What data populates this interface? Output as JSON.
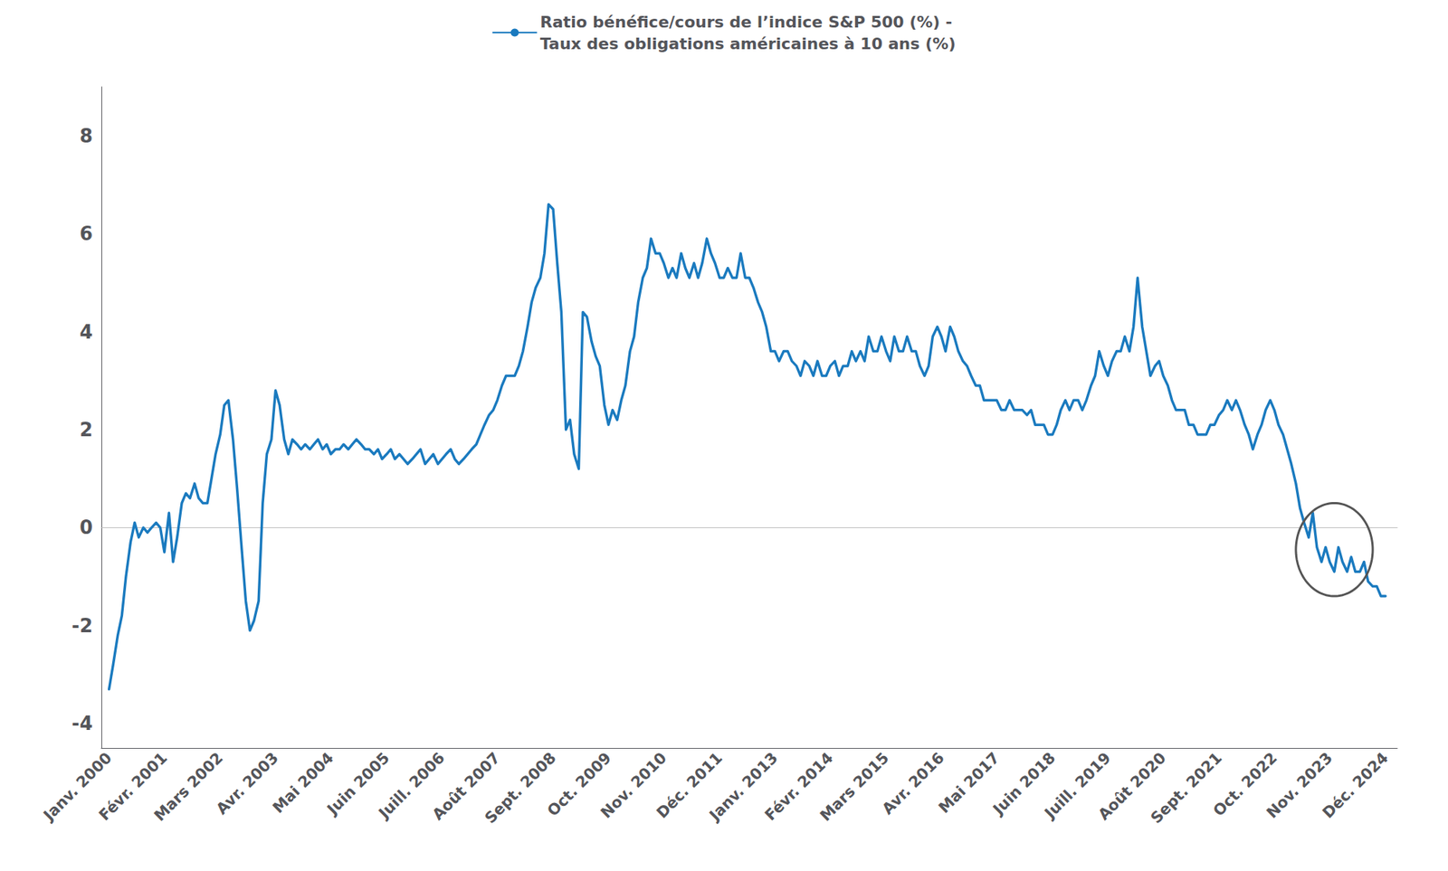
{
  "chart_data": {
    "type": "line",
    "legend": "top",
    "grid": false,
    "series": [
      {
        "name": "Ratio bénéfice/cours de l’indice S&P 500 (%) -\nTaux des obligations américaines à 10 ans (%)",
        "color": "#1a7abf",
        "values": [
          -3.3,
          -2.8,
          -2.2,
          -1.8,
          -1.0,
          -0.3,
          0.1,
          -0.2,
          0.0,
          -0.1,
          0.0,
          0.1,
          0.0,
          -0.5,
          0.3,
          -0.7,
          -0.2,
          0.5,
          0.7,
          0.6,
          0.9,
          0.6,
          0.5,
          0.5,
          1.0,
          1.5,
          1.9,
          2.5,
          2.6,
          1.8,
          0.8,
          -0.3,
          -1.5,
          -2.1,
          -1.9,
          -1.5,
          0.5,
          1.5,
          1.8,
          2.8,
          2.5,
          1.8,
          1.5,
          1.8,
          1.7,
          1.6,
          1.7,
          1.6,
          1.7,
          1.8,
          1.6,
          1.7,
          1.5,
          1.6,
          1.6,
          1.7,
          1.6,
          1.7,
          1.8,
          1.7,
          1.6,
          1.6,
          1.5,
          1.6,
          1.4,
          1.5,
          1.6,
          1.4,
          1.5,
          1.4,
          1.3,
          1.4,
          1.5,
          1.6,
          1.3,
          1.4,
          1.5,
          1.3,
          1.4,
          1.5,
          1.6,
          1.4,
          1.3,
          1.4,
          1.5,
          1.6,
          1.7,
          1.9,
          2.1,
          2.3,
          2.4,
          2.6,
          2.9,
          3.1,
          3.1,
          3.1,
          3.3,
          3.6,
          4.1,
          4.6,
          4.9,
          5.1,
          5.6,
          6.6,
          6.5,
          5.4,
          4.4,
          2.0,
          2.2,
          1.5,
          1.2,
          4.4,
          4.3,
          3.8,
          3.5,
          3.3,
          2.5,
          2.1,
          2.4,
          2.2,
          2.6,
          2.9,
          3.6,
          3.9,
          4.6,
          5.1,
          5.3,
          5.9,
          5.6,
          5.6,
          5.4,
          5.1,
          5.3,
          5.1,
          5.6,
          5.3,
          5.1,
          5.4,
          5.1,
          5.4,
          5.9,
          5.6,
          5.4,
          5.1,
          5.1,
          5.3,
          5.1,
          5.1,
          5.6,
          5.1,
          5.1,
          4.9,
          4.6,
          4.4,
          4.1,
          3.6,
          3.6,
          3.4,
          3.6,
          3.6,
          3.4,
          3.3,
          3.1,
          3.4,
          3.3,
          3.1,
          3.4,
          3.1,
          3.1,
          3.3,
          3.4,
          3.1,
          3.3,
          3.3,
          3.6,
          3.4,
          3.6,
          3.4,
          3.9,
          3.6,
          3.6,
          3.9,
          3.6,
          3.4,
          3.9,
          3.6,
          3.6,
          3.9,
          3.6,
          3.6,
          3.3,
          3.1,
          3.3,
          3.9,
          4.1,
          3.9,
          3.6,
          4.1,
          3.9,
          3.6,
          3.4,
          3.3,
          3.1,
          2.9,
          2.9,
          2.6,
          2.6,
          2.6,
          2.6,
          2.4,
          2.4,
          2.6,
          2.4,
          2.4,
          2.4,
          2.3,
          2.4,
          2.1,
          2.1,
          2.1,
          1.9,
          1.9,
          2.1,
          2.4,
          2.6,
          2.4,
          2.6,
          2.6,
          2.4,
          2.6,
          2.9,
          3.1,
          3.6,
          3.3,
          3.1,
          3.4,
          3.6,
          3.6,
          3.9,
          3.6,
          4.1,
          5.1,
          4.1,
          3.6,
          3.1,
          3.3,
          3.4,
          3.1,
          2.9,
          2.6,
          2.4,
          2.4,
          2.4,
          2.1,
          2.1,
          1.9,
          1.9,
          1.9,
          2.1,
          2.1,
          2.3,
          2.4,
          2.6,
          2.4,
          2.6,
          2.4,
          2.1,
          1.9,
          1.6,
          1.9,
          2.1,
          2.4,
          2.6,
          2.4,
          2.1,
          1.9,
          1.6,
          1.3,
          0.9,
          0.4,
          0.1,
          -0.2,
          0.3,
          -0.4,
          -0.7,
          -0.4,
          -0.7,
          -0.9,
          -0.4,
          -0.7,
          -0.9,
          -0.6,
          -0.9,
          -0.9,
          -0.7,
          -1.1,
          -1.2,
          -1.2,
          -1.4,
          -1.4
        ]
      }
    ],
    "x": [
      2000.0,
      2000.08,
      2000.17,
      2000.25,
      2000.33,
      2000.42,
      2000.5,
      2000.58,
      2000.67,
      2000.75,
      2000.83,
      2000.92,
      2001.0,
      2001.08,
      2001.17,
      2001.25,
      2001.33,
      2001.42,
      2001.5,
      2001.58,
      2001.67,
      2001.75,
      2001.83,
      2001.92,
      2002.0,
      2002.08,
      2002.17,
      2002.25,
      2002.33,
      2002.42,
      2002.5,
      2002.58,
      2002.67,
      2002.75,
      2002.83,
      2002.92,
      2003.0,
      2003.08,
      2003.17,
      2003.25,
      2003.33,
      2003.42,
      2003.5,
      2003.58,
      2003.67,
      2003.75,
      2003.83,
      2003.92,
      2004.0,
      2004.08,
      2004.17,
      2004.25,
      2004.33,
      2004.42,
      2004.5,
      2004.58,
      2004.67,
      2004.75,
      2004.83,
      2004.92,
      2005.0,
      2005.08,
      2005.17,
      2005.25,
      2005.33,
      2005.42,
      2005.5,
      2005.58,
      2005.67,
      2005.75,
      2005.83,
      2005.92,
      2006.0,
      2006.08,
      2006.17,
      2006.25,
      2006.33,
      2006.42,
      2006.5,
      2006.58,
      2006.67,
      2006.75,
      2006.83,
      2006.92,
      2007.0,
      2007.08,
      2007.17,
      2007.25,
      2007.33,
      2007.42,
      2007.5,
      2007.58,
      2007.67,
      2007.75,
      2007.83,
      2007.92,
      2008.0,
      2008.08,
      2008.17,
      2008.25,
      2008.33,
      2008.42,
      2008.5,
      2008.58,
      2008.67,
      2008.75,
      2008.83,
      2008.92,
      2009.0,
      2009.08,
      2009.17,
      2009.25,
      2009.33,
      2009.42,
      2009.5,
      2009.58,
      2009.67,
      2009.75,
      2009.83,
      2009.92,
      2010.0,
      2010.08,
      2010.17,
      2010.25,
      2010.33,
      2010.42,
      2010.5,
      2010.58,
      2010.67,
      2010.75,
      2010.83,
      2010.92,
      2011.0,
      2011.08,
      2011.17,
      2011.25,
      2011.33,
      2011.42,
      2011.5,
      2011.58,
      2011.67,
      2011.75,
      2011.83,
      2011.92,
      2012.0,
      2012.08,
      2012.17,
      2012.25,
      2012.33,
      2012.42,
      2012.5,
      2012.58,
      2012.67,
      2012.75,
      2012.83,
      2012.92,
      2013.0,
      2013.08,
      2013.17,
      2013.25,
      2013.33,
      2013.42,
      2013.5,
      2013.58,
      2013.67,
      2013.75,
      2013.83,
      2013.92,
      2014.0,
      2014.08,
      2014.17,
      2014.25,
      2014.33,
      2014.42,
      2014.5,
      2014.58,
      2014.67,
      2014.75,
      2014.83,
      2014.92,
      2015.0,
      2015.08,
      2015.17,
      2015.25,
      2015.33,
      2015.42,
      2015.5,
      2015.58,
      2015.67,
      2015.75,
      2015.83,
      2015.92,
      2016.0,
      2016.08,
      2016.17,
      2016.25,
      2016.33,
      2016.42,
      2016.5,
      2016.58,
      2016.67,
      2016.75,
      2016.83,
      2016.92,
      2017.0,
      2017.08,
      2017.17,
      2017.25,
      2017.33,
      2017.42,
      2017.5,
      2017.58,
      2017.67,
      2017.75,
      2017.83,
      2017.92,
      2018.0,
      2018.08,
      2018.17,
      2018.25,
      2018.33,
      2018.42,
      2018.5,
      2018.58,
      2018.67,
      2018.75,
      2018.83,
      2018.92,
      2019.0,
      2019.08,
      2019.17,
      2019.25,
      2019.33,
      2019.42,
      2019.5,
      2019.58,
      2019.67,
      2019.75,
      2019.83,
      2019.92,
      2020.0,
      2020.08,
      2020.17,
      2020.25,
      2020.33,
      2020.42,
      2020.5,
      2020.58,
      2020.67,
      2020.75,
      2020.83,
      2020.92,
      2021.0,
      2021.08,
      2021.17,
      2021.25,
      2021.33,
      2021.42,
      2021.5,
      2021.58,
      2021.67,
      2021.75,
      2021.83,
      2021.92,
      2022.0,
      2022.08,
      2022.17,
      2022.25,
      2022.33,
      2022.42,
      2022.5,
      2022.58,
      2022.67,
      2022.75,
      2022.83,
      2022.92,
      2023.0,
      2023.08,
      2023.17,
      2023.25,
      2023.33,
      2023.42,
      2023.5,
      2023.58,
      2023.67,
      2023.75,
      2023.83,
      2023.92,
      2024.0,
      2024.08,
      2024.17,
      2024.25,
      2024.33,
      2024.42,
      2024.5,
      2024.58,
      2024.67,
      2024.75,
      2024.83,
      2024.92
    ],
    "xlim": [
      1999.85,
      2025.15
    ],
    "xticks": [
      {
        "value": 2000.0,
        "label": "Janv. 2000"
      },
      {
        "value": 2001.08,
        "label": "Févr. 2001"
      },
      {
        "value": 2002.17,
        "label": "Mars 2002"
      },
      {
        "value": 2003.25,
        "label": "Avr. 2003"
      },
      {
        "value": 2004.33,
        "label": "Mai 2004"
      },
      {
        "value": 2005.42,
        "label": "Juin 2005"
      },
      {
        "value": 2006.5,
        "label": "Juill. 2006"
      },
      {
        "value": 2007.58,
        "label": "Août 2007"
      },
      {
        "value": 2008.67,
        "label": "Sept. 2008"
      },
      {
        "value": 2009.75,
        "label": "Oct. 2009"
      },
      {
        "value": 2010.83,
        "label": "Nov. 2010"
      },
      {
        "value": 2011.92,
        "label": "Déc. 2011"
      },
      {
        "value": 2013.0,
        "label": "Janv. 2013"
      },
      {
        "value": 2014.08,
        "label": "Févr. 2014"
      },
      {
        "value": 2015.17,
        "label": "Mars 2015"
      },
      {
        "value": 2016.25,
        "label": "Avr. 2016"
      },
      {
        "value": 2017.33,
        "label": "Mai 2017"
      },
      {
        "value": 2018.42,
        "label": "Juin 2018"
      },
      {
        "value": 2019.5,
        "label": "Juill. 2019"
      },
      {
        "value": 2020.58,
        "label": "Août 2020"
      },
      {
        "value": 2021.67,
        "label": "Sept. 2021"
      },
      {
        "value": 2022.75,
        "label": "Oct. 2022"
      },
      {
        "value": 2023.83,
        "label": "Nov. 2023"
      },
      {
        "value": 2024.92,
        "label": "Déc. 2024"
      }
    ],
    "ylim": [
      -4.5,
      9.0
    ],
    "yticks": [
      -4,
      -2,
      0,
      2,
      4,
      6,
      8
    ],
    "ellipse": {
      "x": 2023.92,
      "y": -0.45,
      "width": 1.5,
      "height": 1.9,
      "color": "#555555"
    }
  }
}
